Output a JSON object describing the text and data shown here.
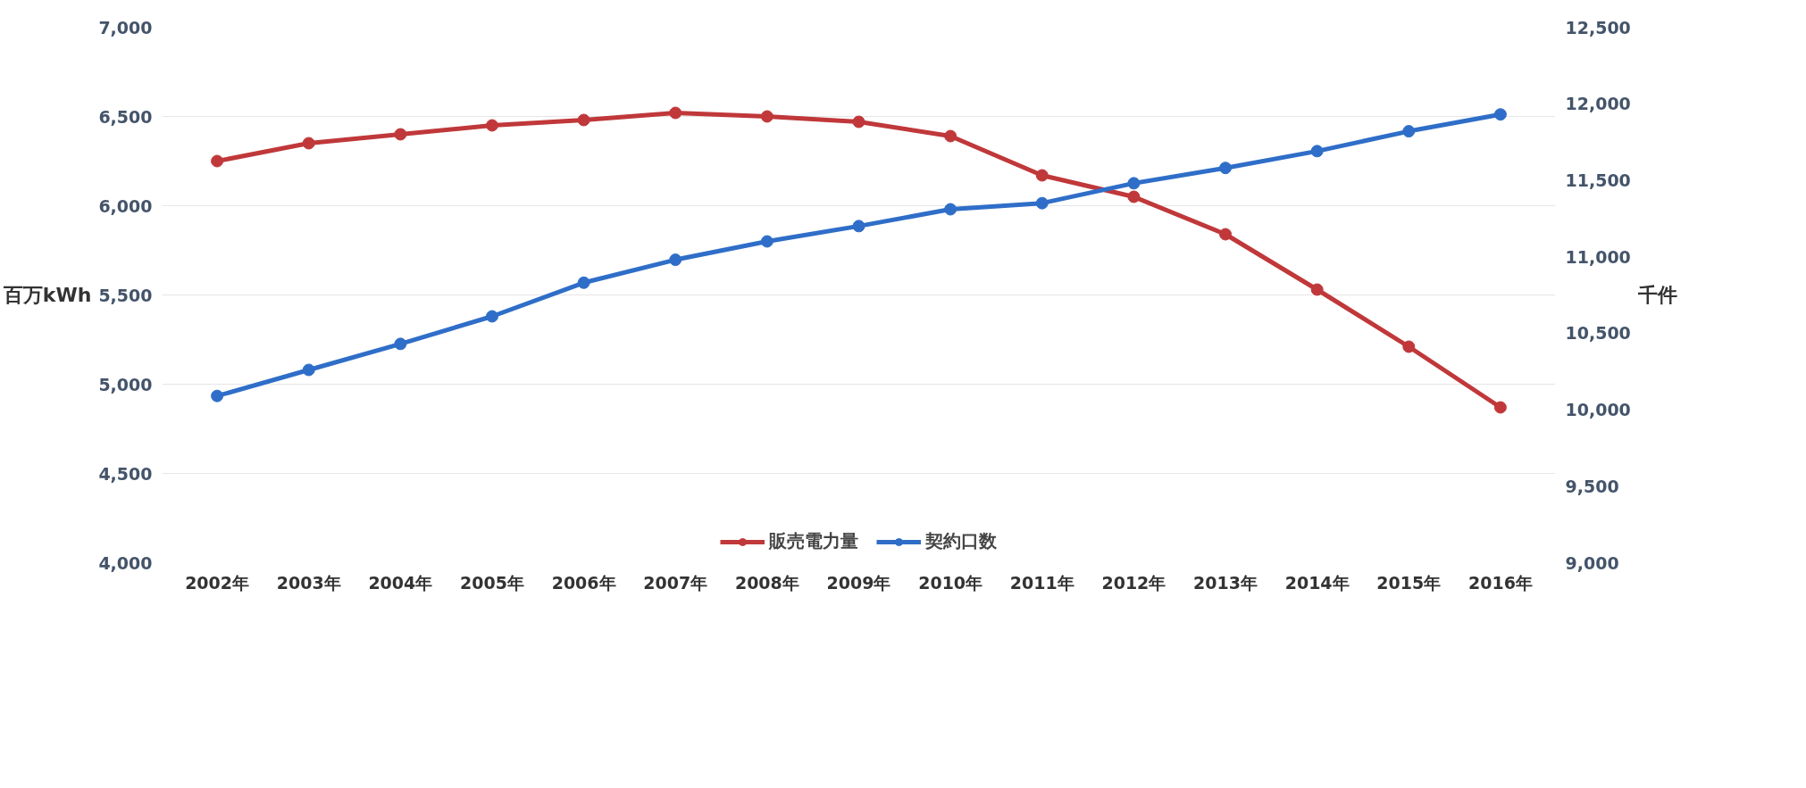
{
  "chart_data": {
    "type": "line",
    "categories": [
      "2002年",
      "2003年",
      "2004年",
      "2005年",
      "2006年",
      "2007年",
      "2008年",
      "2009年",
      "2010年",
      "2011年",
      "2012年",
      "2013年",
      "2014年",
      "2015年",
      "2016年"
    ],
    "ylabel": "百万kWh",
    "y2label": "千件",
    "series": [
      {
        "name": "販売電力量",
        "color": "#c0383a",
        "values": [
          6250,
          6350,
          6400,
          6450,
          6480,
          6520,
          6500,
          6470,
          6390,
          6170,
          6050,
          5840,
          5530,
          5210,
          4870
        ]
      },
      {
        "name": "契約口数",
        "color": "#2f6ec8",
        "axis": "y2",
        "values": [
          10090,
          10260,
          10430,
          10610,
          10830,
          10980,
          11100,
          11200,
          11310,
          11350,
          11480,
          11580,
          11690,
          11820,
          11930
        ]
      }
    ],
    "ylim": [
      4000,
      7000
    ],
    "yticks": [
      {
        "value": 4000,
        "label": "4,000"
      },
      {
        "value": 4500,
        "label": "4,500"
      },
      {
        "value": 5000,
        "label": "5,000"
      },
      {
        "value": 5500,
        "label": "5,500"
      },
      {
        "value": 6000,
        "label": "6,000"
      },
      {
        "value": 6500,
        "label": "6,500"
      },
      {
        "value": 7000,
        "label": "7,000"
      }
    ],
    "y2lim": [
      9000,
      12500
    ],
    "y2ticks": [
      {
        "value": 9000,
        "label": "9,000"
      },
      {
        "value": 9500,
        "label": "9,500"
      },
      {
        "value": 10000,
        "label": "10,000"
      },
      {
        "value": 10500,
        "label": "10,500"
      },
      {
        "value": 11000,
        "label": "11,000"
      },
      {
        "value": 11500,
        "label": "11,500"
      },
      {
        "value": 12000,
        "label": "12,000"
      },
      {
        "value": 12500,
        "label": "12,500"
      }
    ],
    "grid": "y",
    "legend": "bottom",
    "marker": "circle",
    "line_style": "solid"
  }
}
